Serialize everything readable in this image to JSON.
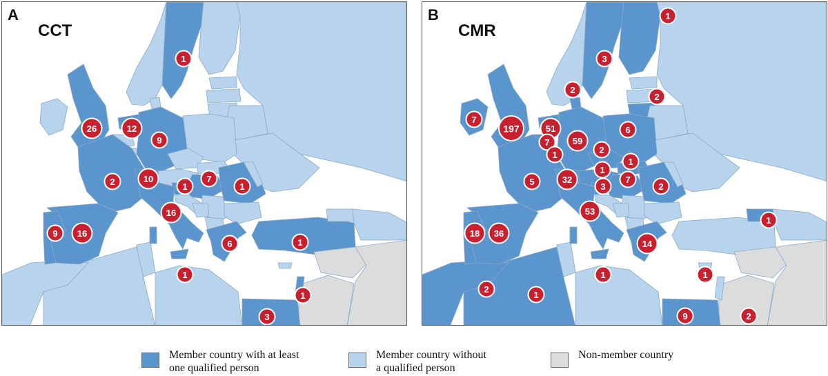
{
  "colors": {
    "member_qualified": "#5b95cd",
    "member_no_qualified": "#b8d3ec",
    "non_member": "#dcdcdc",
    "sea": "#ffffff",
    "marker_fill": "#c8202f"
  },
  "panels": [
    {
      "letter": "A",
      "title": "CCT",
      "markers": [
        {
          "country": "Sweden",
          "count": "1"
        },
        {
          "country": "United Kingdom",
          "count": "26"
        },
        {
          "country": "Netherlands",
          "count": "12"
        },
        {
          "country": "Germany",
          "count": "9"
        },
        {
          "country": "France",
          "count": "2"
        },
        {
          "country": "Switzerland",
          "count": "10"
        },
        {
          "country": "Slovenia",
          "count": "1"
        },
        {
          "country": "Hungary",
          "count": "7"
        },
        {
          "country": "Romania",
          "count": "1"
        },
        {
          "country": "Italy",
          "count": "16"
        },
        {
          "country": "Portugal",
          "count": "9"
        },
        {
          "country": "Spain",
          "count": "16"
        },
        {
          "country": "Greece",
          "count": "6"
        },
        {
          "country": "Turkey",
          "count": "1"
        },
        {
          "country": "Libya",
          "count": "1"
        },
        {
          "country": "Israel",
          "count": "1"
        },
        {
          "country": "Egypt",
          "count": "3"
        }
      ]
    },
    {
      "letter": "B",
      "title": "CMR",
      "markers": [
        {
          "country": "Finland",
          "count": "1"
        },
        {
          "country": "Sweden",
          "count": "3"
        },
        {
          "country": "Denmark",
          "count": "2"
        },
        {
          "country": "Lithuania",
          "count": "2"
        },
        {
          "country": "Ireland",
          "count": "7"
        },
        {
          "country": "United Kingdom",
          "count": "197"
        },
        {
          "country": "Netherlands",
          "count": "51"
        },
        {
          "country": "Belgium",
          "count": "7"
        },
        {
          "country": "Luxembourg",
          "count": "1"
        },
        {
          "country": "Germany",
          "count": "59"
        },
        {
          "country": "Poland",
          "count": "6"
        },
        {
          "country": "Czech Republic",
          "count": "2"
        },
        {
          "country": "Slovakia",
          "count": "1"
        },
        {
          "country": "Austria",
          "count": "1"
        },
        {
          "country": "Hungary",
          "count": "7"
        },
        {
          "country": "Romania",
          "count": "2"
        },
        {
          "country": "France",
          "count": "5"
        },
        {
          "country": "Switzerland",
          "count": "32"
        },
        {
          "country": "Slovenia",
          "count": "3"
        },
        {
          "country": "Italy",
          "count": "53"
        },
        {
          "country": "Portugal",
          "count": "18"
        },
        {
          "country": "Spain",
          "count": "36"
        },
        {
          "country": "Greece",
          "count": "14"
        },
        {
          "country": "Georgia",
          "count": "1"
        },
        {
          "country": "Morocco",
          "count": "2"
        },
        {
          "country": "Algeria",
          "count": "1"
        },
        {
          "country": "Libya",
          "count": "1"
        },
        {
          "country": "Cyprus",
          "count": "1"
        },
        {
          "country": "Egypt",
          "count": "9"
        },
        {
          "country": "Saudi Arabia",
          "count": "2"
        }
      ]
    }
  ],
  "legend": [
    {
      "label": "Member country with at least\none qualified person",
      "color_key": "member_qualified"
    },
    {
      "label": "Member country without\na qualified person",
      "color_key": "member_no_qualified"
    },
    {
      "label": "Non-member country",
      "color_key": "non_member"
    }
  ]
}
